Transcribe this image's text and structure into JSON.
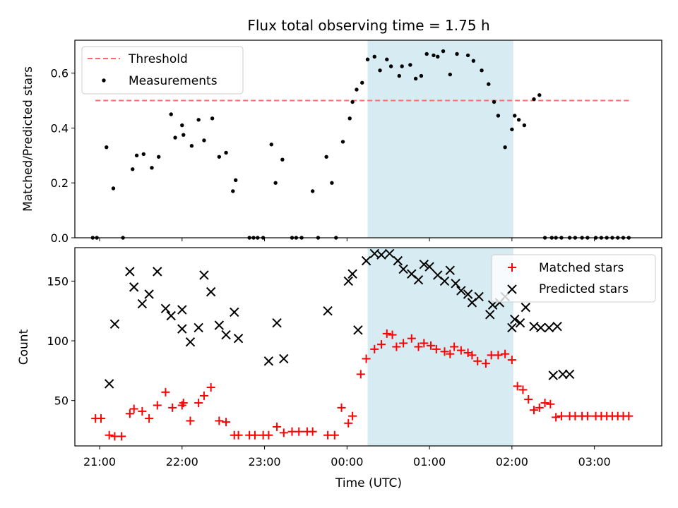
{
  "chart_data": [
    {
      "type": "scatter",
      "title": "Flux total observing time = 1.75 h",
      "xlabel": "",
      "ylabel": "Matched/Predicted stars",
      "xlim": [
        "20:42",
        "03:49"
      ],
      "ylim": [
        0,
        0.72
      ],
      "yticks": [
        "0.0",
        "0.2",
        "0.4",
        "0.6"
      ],
      "highlight_span": [
        "00:15",
        "02:01"
      ],
      "threshold": {
        "name": "Threshold",
        "value": 0.5,
        "x_from": "20:57",
        "x_to": "03:26",
        "color": "#ff6b6b"
      },
      "legend": {
        "position": "top-left",
        "entries": [
          "Threshold",
          "Measurements"
        ]
      },
      "series": [
        {
          "name": "Measurements",
          "color": "#000000",
          "x": [
            "20:55",
            "20:58",
            "21:05",
            "21:10",
            "21:17",
            "21:24",
            "21:27",
            "21:32",
            "21:38",
            "21:43",
            "21:52",
            "21:55",
            "22:00",
            "22:01",
            "22:07",
            "22:12",
            "22:16",
            "22:22",
            "22:27",
            "22:32",
            "22:37",
            "22:39",
            "22:49",
            "22:52",
            "22:55",
            "22:59",
            "23:05",
            "23:08",
            "23:13",
            "23:20",
            "23:23",
            "23:27",
            "23:35",
            "23:39",
            "23:45",
            "23:49",
            "23:52",
            "23:57",
            "00:02",
            "00:04",
            "00:07",
            "00:11",
            "00:15",
            "00:20",
            "00:24",
            "00:29",
            "00:32",
            "00:38",
            "00:40",
            "00:46",
            "00:50",
            "00:54",
            "00:58",
            "01:03",
            "01:06",
            "01:10",
            "01:15",
            "01:20",
            "01:28",
            "01:32",
            "01:38",
            "01:43",
            "01:47",
            "01:50",
            "01:55",
            "02:00",
            "02:02",
            "02:05",
            "02:09",
            "02:16",
            "02:20",
            "02:24",
            "02:29",
            "02:32",
            "02:36",
            "02:42",
            "02:46",
            "02:51",
            "02:55",
            "03:01",
            "03:05",
            "03:09",
            "03:13",
            "03:17",
            "03:21",
            "03:25"
          ],
          "y": [
            0,
            0,
            0.33,
            0.18,
            0,
            0.25,
            0.3,
            0.305,
            0.255,
            0.295,
            0.45,
            0.365,
            0.41,
            0.375,
            0.335,
            0.43,
            0.355,
            0.435,
            0.295,
            0.31,
            0.17,
            0.21,
            0,
            0,
            0,
            0,
            0.34,
            0.2,
            0.285,
            0,
            0,
            0,
            0.17,
            0,
            0.295,
            0.2,
            0,
            0.35,
            0.435,
            0.495,
            0.54,
            0.565,
            0.65,
            0.66,
            0.61,
            0.65,
            0.625,
            0.59,
            0.625,
            0.63,
            0.58,
            0.59,
            0.67,
            0.665,
            0.66,
            0.68,
            0.595,
            0.67,
            0.665,
            0.645,
            0.61,
            0.56,
            0.495,
            0.445,
            0.33,
            0.395,
            0.445,
            0.43,
            0.41,
            0.505,
            0.52,
            0,
            0,
            0,
            0,
            0,
            0,
            0,
            0,
            0,
            0,
            0,
            0,
            0,
            0,
            0
          ]
        }
      ]
    },
    {
      "type": "scatter",
      "title": "",
      "xlabel": "Time (UTC)",
      "ylabel": "Count",
      "xlim": [
        "20:42",
        "03:49"
      ],
      "ylim": [
        12,
        178
      ],
      "xticks": [
        "21:00",
        "22:00",
        "23:00",
        "00:00",
        "01:00",
        "02:00",
        "03:00"
      ],
      "yticks": [
        "50",
        "100",
        "150"
      ],
      "highlight_span": [
        "00:15",
        "02:01"
      ],
      "legend": {
        "position": "top-right",
        "entries": [
          "Matched stars",
          "Predicted stars"
        ]
      },
      "series": [
        {
          "name": "Matched stars",
          "color": "#ff0000",
          "marker": "+",
          "x": [
            "20:57",
            "21:01",
            "21:07",
            "21:11",
            "21:16",
            "21:22",
            "21:25",
            "21:31",
            "21:36",
            "21:42",
            "21:48",
            "21:53",
            "22:00",
            "22:01",
            "22:06",
            "22:12",
            "22:16",
            "22:21",
            "22:27",
            "22:32",
            "22:38",
            "22:41",
            "22:49",
            "22:53",
            "22:59",
            "23:03",
            "23:09",
            "23:14",
            "23:20",
            "23:25",
            "23:31",
            "23:35",
            "23:46",
            "23:51",
            "23:56",
            "00:01",
            "00:04",
            "00:10",
            "00:14",
            "00:20",
            "00:25",
            "00:29",
            "00:33",
            "00:36",
            "00:41",
            "00:47",
            "00:52",
            "00:56",
            "01:01",
            "01:05",
            "01:11",
            "01:15",
            "01:18",
            "01:23",
            "01:28",
            "01:31",
            "01:35",
            "01:41",
            "01:45",
            "01:50",
            "01:55",
            "02:00",
            "02:04",
            "02:08",
            "02:12",
            "02:16",
            "02:20",
            "02:24",
            "02:28",
            "02:32",
            "02:36",
            "02:42",
            "02:46",
            "02:51",
            "02:55",
            "03:01",
            "03:05",
            "03:09",
            "03:13",
            "03:17",
            "03:21",
            "03:25"
          ],
          "y": [
            35,
            35,
            21,
            20,
            20,
            39,
            43,
            41,
            35,
            46,
            57,
            44,
            46,
            48,
            33,
            48,
            54,
            61,
            33,
            32,
            21,
            21,
            21,
            21,
            21,
            21,
            28,
            23,
            24,
            24,
            24,
            24,
            21,
            21,
            44,
            31,
            37,
            72,
            85,
            93,
            97,
            106,
            105,
            95,
            98,
            102,
            95,
            98,
            96,
            93,
            91,
            89,
            95,
            92,
            90,
            88,
            83,
            81,
            88,
            88,
            89,
            84,
            62,
            59,
            51,
            42,
            44,
            48,
            47,
            36,
            37,
            37,
            37,
            37,
            37,
            37,
            37,
            37,
            37,
            37,
            37,
            37
          ]
        },
        {
          "name": "Predicted stars",
          "color": "#000000",
          "marker": "x",
          "x": [
            "21:07",
            "21:11",
            "21:22",
            "21:25",
            "21:31",
            "21:36",
            "21:42",
            "21:48",
            "21:52",
            "22:00",
            "22:00",
            "22:06",
            "22:12",
            "22:16",
            "22:21",
            "22:27",
            "22:32",
            "22:38",
            "22:41",
            "23:03",
            "23:09",
            "23:14",
            "23:46",
            "00:01",
            "00:04",
            "00:08",
            "00:14",
            "00:20",
            "00:25",
            "00:31",
            "00:37",
            "00:41",
            "00:47",
            "00:52",
            "00:56",
            "01:00",
            "01:06",
            "01:11",
            "01:15",
            "01:19",
            "01:23",
            "01:28",
            "01:31",
            "01:36",
            "01:44",
            "01:46",
            "01:51",
            "01:55",
            "02:00",
            "02:02",
            "02:06",
            "02:10",
            "02:16",
            "02:21",
            "02:27",
            "02:30",
            "02:33",
            "02:37",
            "02:42"
          ],
          "y": [
            64,
            114,
            158,
            145,
            131,
            139,
            158,
            127,
            121,
            126,
            110,
            99,
            111,
            155,
            141,
            113,
            105,
            124,
            102,
            83,
            115,
            85,
            125,
            150,
            156,
            109,
            167,
            173,
            172,
            173,
            167,
            160,
            156,
            151,
            164,
            162,
            155,
            150,
            159,
            148,
            142,
            139,
            132,
            137,
            122,
            130,
            132,
            137,
            111,
            118,
            115,
            128,
            112,
            111,
            111,
            71,
            112,
            72,
            72
          ]
        }
      ]
    }
  ]
}
